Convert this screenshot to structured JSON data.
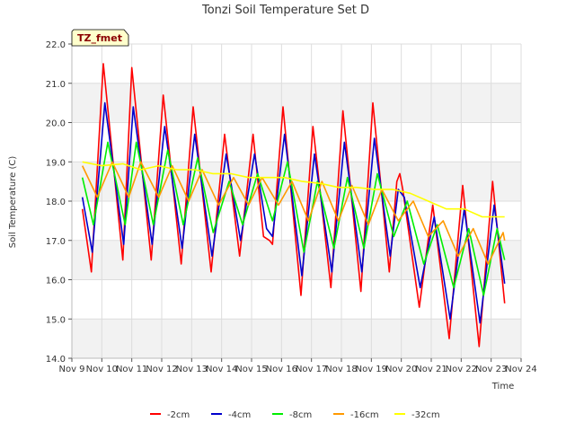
{
  "chart_data": {
    "type": "line",
    "title": "Tonzi Soil Temperature Set D",
    "xlabel": "Time",
    "ylabel": "Soil Temperature (C)",
    "badge": "TZ_fmet",
    "ylim": [
      14.0,
      22.0
    ],
    "xlim": [
      0,
      15
    ],
    "x_ticks": [
      0,
      1,
      2,
      3,
      4,
      5,
      6,
      7,
      8,
      9,
      10,
      11,
      12,
      13,
      14,
      15
    ],
    "x_tick_labels": [
      "Nov 9",
      "Nov 10",
      "Nov 11",
      "Nov 12",
      "Nov 13",
      "Nov 14",
      "Nov 15",
      "Nov 16",
      "Nov 17",
      "Nov 18",
      "Nov 19",
      "Nov 20",
      "Nov 21",
      "Nov 22",
      "Nov 23",
      "Nov 24"
    ],
    "y_ticks": [
      14.0,
      15.0,
      16.0,
      17.0,
      18.0,
      19.0,
      20.0,
      21.0,
      22.0
    ],
    "y_tick_labels": [
      "14.0",
      "15.0",
      "16.0",
      "17.0",
      "18.0",
      "19.0",
      "20.0",
      "21.0",
      "22.0"
    ],
    "grid": true,
    "legend_position": "bottom",
    "series": [
      {
        "name": "-2cm",
        "color": "#ff0000",
        "x": [
          0.35,
          0.65,
          1.05,
          1.7,
          2.0,
          2.65,
          3.05,
          3.65,
          4.05,
          4.65,
          5.1,
          5.6,
          6.05,
          6.4,
          6.6,
          6.7,
          7.05,
          7.65,
          8.05,
          8.65,
          9.05,
          9.65,
          10.05,
          10.6,
          10.85,
          10.95,
          11.05,
          11.6,
          12.05,
          12.6,
          13.05,
          13.6,
          14.05,
          14.45
        ],
        "y": [
          17.8,
          16.2,
          21.5,
          16.5,
          21.4,
          16.5,
          20.7,
          16.4,
          20.4,
          16.2,
          19.7,
          16.6,
          19.7,
          17.1,
          17.0,
          16.9,
          20.4,
          15.6,
          19.9,
          15.8,
          20.3,
          15.7,
          20.5,
          16.2,
          18.5,
          18.7,
          18.3,
          15.3,
          17.9,
          14.5,
          18.4,
          14.3,
          18.5,
          15.4
        ]
      },
      {
        "name": "-4cm",
        "color": "#0000cc",
        "x": [
          0.35,
          0.68,
          1.1,
          1.73,
          2.05,
          2.68,
          3.1,
          3.68,
          4.1,
          4.68,
          5.15,
          5.63,
          6.1,
          6.5,
          6.7,
          7.1,
          7.68,
          8.1,
          8.68,
          9.1,
          9.68,
          10.1,
          10.63,
          10.9,
          11.1,
          11.63,
          12.1,
          12.63,
          13.1,
          13.63,
          14.1,
          14.45
        ],
        "y": [
          18.1,
          16.7,
          20.5,
          16.9,
          20.4,
          16.9,
          19.9,
          16.8,
          19.7,
          16.6,
          19.2,
          17.0,
          19.2,
          17.3,
          17.1,
          19.7,
          16.1,
          19.2,
          16.2,
          19.5,
          16.2,
          19.6,
          16.6,
          18.3,
          18.1,
          15.8,
          17.6,
          15.0,
          17.8,
          14.9,
          17.9,
          15.9
        ]
      },
      {
        "name": "-8cm",
        "color": "#00ee00",
        "x": [
          0.35,
          0.72,
          1.2,
          1.78,
          2.15,
          2.72,
          3.2,
          3.72,
          4.2,
          4.72,
          5.25,
          5.7,
          6.2,
          6.7,
          7.2,
          7.75,
          8.2,
          8.75,
          9.2,
          9.75,
          10.2,
          10.75,
          11.2,
          11.75,
          12.2,
          12.75,
          13.25,
          13.75,
          14.2,
          14.45
        ],
        "y": [
          18.6,
          17.4,
          19.5,
          17.4,
          19.5,
          17.4,
          19.3,
          17.4,
          19.1,
          17.2,
          18.5,
          17.4,
          18.7,
          17.5,
          19.0,
          16.7,
          18.5,
          16.8,
          18.6,
          16.8,
          18.7,
          17.1,
          18.0,
          16.4,
          17.4,
          15.8,
          17.3,
          15.6,
          17.3,
          16.5
        ]
      },
      {
        "name": "-16cm",
        "color": "#ff9900",
        "x": [
          0.35,
          0.85,
          1.35,
          1.9,
          2.3,
          2.9,
          3.35,
          3.9,
          4.35,
          4.9,
          5.4,
          5.9,
          6.35,
          6.9,
          7.35,
          7.9,
          8.35,
          8.9,
          9.35,
          9.9,
          10.35,
          10.9,
          11.4,
          11.9,
          12.4,
          12.9,
          13.4,
          13.9,
          14.4,
          14.45
        ],
        "y": [
          18.9,
          18.1,
          19.0,
          18.1,
          19.0,
          18.1,
          18.9,
          18.0,
          18.8,
          17.9,
          18.6,
          17.9,
          18.6,
          17.9,
          18.5,
          17.5,
          18.5,
          17.5,
          18.4,
          17.4,
          18.3,
          17.5,
          18.0,
          17.1,
          17.5,
          16.6,
          17.3,
          16.4,
          17.2,
          17.0
        ]
      },
      {
        "name": "-32cm",
        "color": "#ffff00",
        "x": [
          0.35,
          1.0,
          1.7,
          2.3,
          2.9,
          3.5,
          4.1,
          4.7,
          5.3,
          5.9,
          6.5,
          7.1,
          7.7,
          8.3,
          8.9,
          9.5,
          10.1,
          10.7,
          11.3,
          11.9,
          12.5,
          13.1,
          13.7,
          14.1,
          14.45
        ],
        "y": [
          19.0,
          18.9,
          18.95,
          18.8,
          18.9,
          18.8,
          18.8,
          18.7,
          18.7,
          18.6,
          18.6,
          18.6,
          18.5,
          18.45,
          18.35,
          18.35,
          18.3,
          18.3,
          18.2,
          18.0,
          17.8,
          17.8,
          17.6,
          17.6,
          17.6
        ]
      }
    ]
  }
}
